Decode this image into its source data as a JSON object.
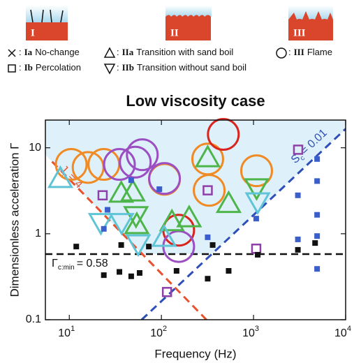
{
  "header": {
    "panels": [
      "I",
      "II",
      "III"
    ]
  },
  "chart_data": {
    "type": "scatter",
    "title": "Low viscosity case",
    "xlabel": "Frequency (Hz)",
    "ylabel": "Dimensionless acceleration Γ",
    "log_x": true,
    "log_y": true,
    "xlim": [
      5.5,
      10000
    ],
    "ylim": [
      0.1,
      21
    ],
    "xticks": [
      {
        "value": 10,
        "label": "10",
        "sup": "1"
      },
      {
        "value": 100,
        "label": "10",
        "sup": "2"
      },
      {
        "value": 1000,
        "label": "10",
        "sup": "3"
      },
      {
        "value": 10000,
        "label": "10",
        "sup": "4"
      }
    ],
    "yticks": [
      0.1,
      1,
      10
    ],
    "legend": [
      {
        "symbol": "cross",
        "prefix": ":",
        "code": "Ia",
        "label": "No-change"
      },
      {
        "symbol": "triangle-up",
        "prefix": ":",
        "code": "IIa",
        "label": "Transition with sand boil"
      },
      {
        "symbol": "circle",
        "prefix": ":",
        "code": "III",
        "label": "Flame"
      },
      {
        "symbol": "square",
        "prefix": ":",
        "code": "Ib",
        "label": "Percolation"
      },
      {
        "symbol": "triangle-down",
        "prefix": ":",
        "code": "IIb",
        "label": "Transition without sand boil"
      }
    ],
    "hline": {
      "value": 0.58,
      "color": "#111",
      "text": "Γ",
      "sub": "c:min",
      "rest": "= 0.58"
    },
    "lines": [
      {
        "color": "#e8502e",
        "x": [
          6.5,
          308
        ],
        "values": [
          6.9,
          0.1
        ],
        "text": "J",
        "sub": "c",
        "rest": "= 4"
      },
      {
        "color": "#2f4fb8",
        "x": [
          61,
          10000
        ],
        "values": [
          0.1,
          16.6
        ],
        "text": "S",
        "sub": "c",
        "rest": "= 0.01"
      }
    ],
    "series": [
      {
        "marker": "square-filled",
        "color": "#111111",
        "x": [
          11.9,
          23.7,
          35,
          47,
          58,
          36.6,
          73,
          146,
          318,
          537,
          1110,
          360,
          3030,
          4660
        ],
        "values": [
          0.71,
          0.33,
          0.36,
          0.32,
          0.35,
          0.74,
          0.71,
          0.37,
          0.3,
          0.37,
          0.57,
          0.74,
          0.65,
          0.78
        ]
      },
      {
        "marker": "square-filled",
        "color": "#3a5fcd",
        "x": [
          23.7,
          26,
          47,
          95,
          318,
          1070,
          3030,
          3030,
          4900,
          4900,
          4900,
          4900,
          4900
        ],
        "values": [
          1.14,
          1.9,
          4.2,
          3.3,
          0.91,
          1.5,
          2.8,
          0.86,
          7.4,
          4.1,
          1.66,
          0.94,
          0.39
        ]
      },
      {
        "marker": "square-open",
        "color": "#8e3fa8",
        "x": [
          23,
          115,
          318,
          1070,
          3050
        ],
        "values": [
          2.8,
          0.21,
          3.2,
          0.67,
          9.5
        ]
      },
      {
        "marker": "circle",
        "color": "#f08a24",
        "x": [
          10.5,
          16,
          23.7,
          108,
          318,
          330,
          1080
        ],
        "values": [
          6.4,
          5.9,
          6.4,
          4.3,
          7.4,
          3.2,
          5.4
        ]
      },
      {
        "marker": "circle",
        "color": "#d8261f",
        "x": [
          470,
          154
        ],
        "values": [
          14.3,
          1.1
        ]
      },
      {
        "marker": "circle",
        "color": "#9b4fc2",
        "x": [
          35,
          52,
          62,
          154,
          108
        ],
        "values": [
          6.4,
          6.8,
          8.3,
          0.71,
          4.4
        ]
      },
      {
        "marker": "triangle-up",
        "color": "#4db54a",
        "x": [
          36.6,
          49,
          318,
          537,
          130,
          200,
          54
        ],
        "values": [
          2.9,
          3.0,
          7.5,
          2.2,
          1.35,
          1.5,
          1.25
        ]
      },
      {
        "marker": "triangle-up",
        "color": "#5ec4d6",
        "x": [
          8,
          107
        ],
        "values": [
          4.3,
          0.89
        ]
      },
      {
        "marker": "triangle-down",
        "color": "#4db54a",
        "x": [
          53,
          1080
        ],
        "values": [
          1.66,
          3.5
        ]
      },
      {
        "marker": "triangle-down",
        "color": "#5ec4d6",
        "x": [
          22,
          37,
          56,
          1110
        ],
        "values": [
          1.38,
          1.38,
          0.78,
          2.4
        ]
      }
    ]
  }
}
